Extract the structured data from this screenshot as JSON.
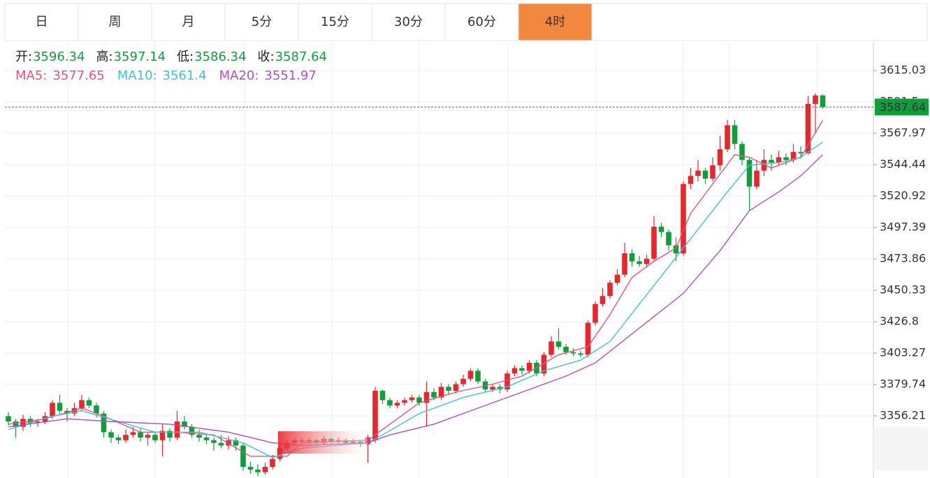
{
  "tabs": [
    "日",
    "周",
    "月",
    "5分",
    "15分",
    "30分",
    "60分",
    "4时"
  ],
  "active_tab": 7,
  "chart_data": {
    "type": "candlestick",
    "ohlc_labels": [
      "开:",
      "高:",
      "低:",
      "收:"
    ],
    "up_color": "#e8262b",
    "down_color": "#0e9f3a",
    "ylim": [
      3309.67,
      3636.47
    ],
    "yticks": [
      3356.21,
      3379.74,
      3403.27,
      3426.8,
      3450.33,
      3473.86,
      3497.39,
      3520.92,
      3544.44,
      3567.97,
      3591.5,
      3615.03
    ],
    "grid": true,
    "candles": [
      [
        3356,
        3359,
        3349,
        3352
      ],
      [
        3352,
        3354,
        3340,
        3348
      ],
      [
        3348,
        3357,
        3345,
        3354
      ],
      [
        3354,
        3356,
        3348,
        3351
      ],
      [
        3351,
        3354,
        3348,
        3352
      ],
      [
        3352,
        3359,
        3350,
        3356
      ],
      [
        3356,
        3368,
        3354,
        3366
      ],
      [
        3366,
        3372,
        3358,
        3360
      ],
      [
        3360,
        3362,
        3352,
        3358
      ],
      [
        3358,
        3366,
        3356,
        3362
      ],
      [
        3362,
        3372,
        3360,
        3368
      ],
      [
        3368,
        3370,
        3362,
        3364
      ],
      [
        3364,
        3366,
        3355,
        3358
      ],
      [
        3358,
        3360,
        3340,
        3344
      ],
      [
        3344,
        3346,
        3336,
        3340
      ],
      [
        3340,
        3342,
        3335,
        3338
      ],
      [
        3338,
        3346,
        3336,
        3342
      ],
      [
        3342,
        3348,
        3340,
        3344
      ],
      [
        3344,
        3347,
        3337,
        3340
      ],
      [
        3340,
        3344,
        3334,
        3342
      ],
      [
        3342,
        3344,
        3336,
        3338
      ],
      [
        3338,
        3350,
        3326,
        3345
      ],
      [
        3345,
        3347,
        3337,
        3340
      ],
      [
        3340,
        3360,
        3338,
        3352
      ],
      [
        3352,
        3356,
        3346,
        3348
      ],
      [
        3348,
        3350,
        3340,
        3342
      ],
      [
        3342,
        3346,
        3337,
        3340
      ],
      [
        3340,
        3342,
        3335,
        3338
      ],
      [
        3338,
        3340,
        3330,
        3336
      ],
      [
        3336,
        3342,
        3332,
        3334
      ],
      [
        3334,
        3341,
        3331,
        3338
      ],
      [
        3338,
        3340,
        3330,
        3334
      ],
      [
        3334,
        3336,
        3315,
        3318
      ],
      [
        3318,
        3322,
        3313,
        3316
      ],
      [
        3316,
        3320,
        3311,
        3314
      ],
      [
        3314,
        3321,
        3312,
        3318
      ],
      [
        3318,
        3327,
        3316,
        3324
      ],
      [
        3324,
        3334,
        3322,
        3332
      ],
      [
        3332,
        3338,
        3330,
        3336
      ],
      [
        3336,
        3340,
        3334,
        3338
      ],
      [
        3338,
        3340,
        3335,
        3337
      ],
      [
        3337,
        3340,
        3335,
        3338
      ],
      [
        3338,
        3339,
        3334,
        3336
      ],
      [
        3336,
        3341,
        3335,
        3339
      ],
      [
        3339,
        3340,
        3335,
        3337
      ],
      [
        3337,
        3340,
        3336,
        3338
      ],
      [
        3338,
        3339,
        3334,
        3336
      ],
      [
        3336,
        3339,
        3335,
        3337
      ],
      [
        3337,
        3338,
        3333,
        3335
      ],
      [
        3335,
        3342,
        3321,
        3340
      ],
      [
        3338,
        3378,
        3336,
        3375
      ],
      [
        3375,
        3376,
        3365,
        3368
      ],
      [
        3368,
        3370,
        3362,
        3364
      ],
      [
        3364,
        3368,
        3362,
        3366
      ],
      [
        3366,
        3370,
        3364,
        3368
      ],
      [
        3368,
        3372,
        3366,
        3370
      ],
      [
        3370,
        3372,
        3364,
        3366
      ],
      [
        3366,
        3382,
        3348,
        3374
      ],
      [
        3374,
        3377,
        3368,
        3370
      ],
      [
        3370,
        3381,
        3368,
        3378
      ],
      [
        3378,
        3380,
        3372,
        3375
      ],
      [
        3375,
        3382,
        3373,
        3380
      ],
      [
        3380,
        3387,
        3378,
        3384
      ],
      [
        3384,
        3392,
        3382,
        3390
      ],
      [
        3390,
        3392,
        3380,
        3382
      ],
      [
        3382,
        3384,
        3374,
        3376
      ],
      [
        3376,
        3380,
        3374,
        3378
      ],
      [
        3378,
        3380,
        3373,
        3376
      ],
      [
        3376,
        3390,
        3374,
        3388
      ],
      [
        3388,
        3394,
        3386,
        3392
      ],
      [
        3392,
        3394,
        3387,
        3390
      ],
      [
        3390,
        3398,
        3388,
        3396
      ],
      [
        3396,
        3398,
        3386,
        3388
      ],
      [
        3388,
        3404,
        3386,
        3402
      ],
      [
        3402,
        3416,
        3400,
        3412
      ],
      [
        3412,
        3422,
        3406,
        3408
      ],
      [
        3408,
        3410,
        3402,
        3404
      ],
      [
        3404,
        3407,
        3401,
        3403
      ],
      [
        3403,
        3405,
        3400,
        3402
      ],
      [
        3402,
        3428,
        3400,
        3426
      ],
      [
        3426,
        3442,
        3424,
        3440
      ],
      [
        3440,
        3452,
        3438,
        3446
      ],
      [
        3446,
        3458,
        3444,
        3456
      ],
      [
        3456,
        3466,
        3454,
        3462
      ],
      [
        3462,
        3486,
        3460,
        3478
      ],
      [
        3478,
        3481,
        3468,
        3472
      ],
      [
        3472,
        3476,
        3468,
        3470
      ],
      [
        3470,
        3477,
        3468,
        3474
      ],
      [
        3474,
        3506,
        3472,
        3498
      ],
      [
        3498,
        3501,
        3490,
        3494
      ],
      [
        3494,
        3496,
        3480,
        3484
      ],
      [
        3484,
        3490,
        3472,
        3478
      ],
      [
        3478,
        3532,
        3476,
        3530
      ],
      [
        3530,
        3542,
        3526,
        3536
      ],
      [
        3536,
        3548,
        3532,
        3540
      ],
      [
        3540,
        3542,
        3530,
        3534
      ],
      [
        3534,
        3550,
        3532,
        3544
      ],
      [
        3544,
        3566,
        3540,
        3556
      ],
      [
        3556,
        3578,
        3554,
        3574
      ],
      [
        3574,
        3578,
        3556,
        3560
      ],
      [
        3560,
        3562,
        3544,
        3548
      ],
      [
        3548,
        3550,
        3510,
        3528
      ],
      [
        3528,
        3548,
        3526,
        3540
      ],
      [
        3540,
        3556,
        3536,
        3548
      ],
      [
        3548,
        3552,
        3540,
        3546
      ],
      [
        3546,
        3555,
        3544,
        3550
      ],
      [
        3550,
        3553,
        3544,
        3548
      ],
      [
        3548,
        3560,
        3546,
        3554
      ],
      [
        3554,
        3558,
        3549,
        3553
      ],
      [
        3553,
        3596,
        3552,
        3590
      ],
      [
        3590,
        3598,
        3568,
        3596.34
      ],
      [
        3596.34,
        3597.14,
        3586.34,
        3587.64
      ]
    ],
    "series": [
      {
        "name": "MA5:",
        "color": "#e8537b",
        "x": [
          0,
          5,
          10,
          13,
          18,
          23,
          28,
          33,
          38,
          40,
          49,
          52,
          56,
          61,
          66,
          70,
          75,
          79,
          82,
          85,
          88,
          91,
          93,
          96,
          99,
          101,
          104,
          108,
          111
        ],
        "values": [
          3350,
          3354,
          3362,
          3356,
          3344,
          3344,
          3342,
          3326,
          3326,
          3336,
          3338,
          3350,
          3366,
          3374,
          3380,
          3386,
          3402,
          3408,
          3432,
          3460,
          3472,
          3482,
          3508,
          3530,
          3552,
          3550,
          3542,
          3550,
          3577.65
        ]
      },
      {
        "name": "MA10:",
        "color": "#3cc4d4",
        "x": [
          0,
          6,
          10,
          15,
          20,
          26,
          32,
          36,
          40,
          49,
          51,
          56,
          62,
          68,
          73,
          78,
          82,
          86,
          90,
          94,
          98,
          101,
          105,
          108,
          111
        ],
        "values": [
          3346,
          3356,
          3360,
          3352,
          3344,
          3344,
          3336,
          3325,
          3332,
          3336,
          3342,
          3358,
          3370,
          3378,
          3390,
          3398,
          3412,
          3440,
          3468,
          3496,
          3524,
          3544,
          3546,
          3550,
          3561.4
        ]
      },
      {
        "name": "MA20:",
        "color": "#b04ec4",
        "x": [
          0,
          8,
          14,
          22,
          30,
          36,
          40,
          49,
          52,
          58,
          64,
          70,
          76,
          80,
          86,
          92,
          97,
          101,
          105,
          108,
          111
        ],
        "values": [
          3348,
          3354,
          3352,
          3350,
          3344,
          3336,
          3334,
          3336,
          3342,
          3350,
          3362,
          3374,
          3386,
          3396,
          3422,
          3448,
          3480,
          3510,
          3524,
          3536,
          3551.97
        ]
      }
    ]
  }
}
